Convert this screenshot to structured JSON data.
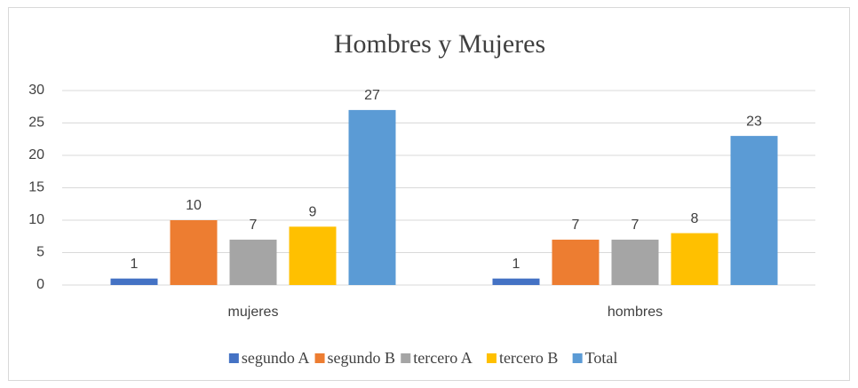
{
  "chart_data": {
    "type": "bar",
    "title": "Hombres y Mujeres",
    "categories": [
      "mujeres",
      "hombres"
    ],
    "series": [
      {
        "name": "segundo A",
        "color": "#4472c4",
        "values": [
          1,
          1
        ]
      },
      {
        "name": "segundo B",
        "color": "#ed7d31",
        "values": [
          10,
          7
        ]
      },
      {
        "name": "tercero A",
        "color": "#a5a5a5",
        "values": [
          7,
          7
        ]
      },
      {
        "name": "tercero B",
        "color": "#ffc000",
        "values": [
          9,
          8
        ]
      },
      {
        "name": "Total",
        "color": "#5b9bd5",
        "values": [
          27,
          23
        ]
      }
    ],
    "ylim": [
      0,
      30
    ],
    "yticks": [
      0,
      5,
      10,
      15,
      20,
      25,
      30
    ],
    "grid": true,
    "legend": "bottom",
    "data_labels": true
  }
}
